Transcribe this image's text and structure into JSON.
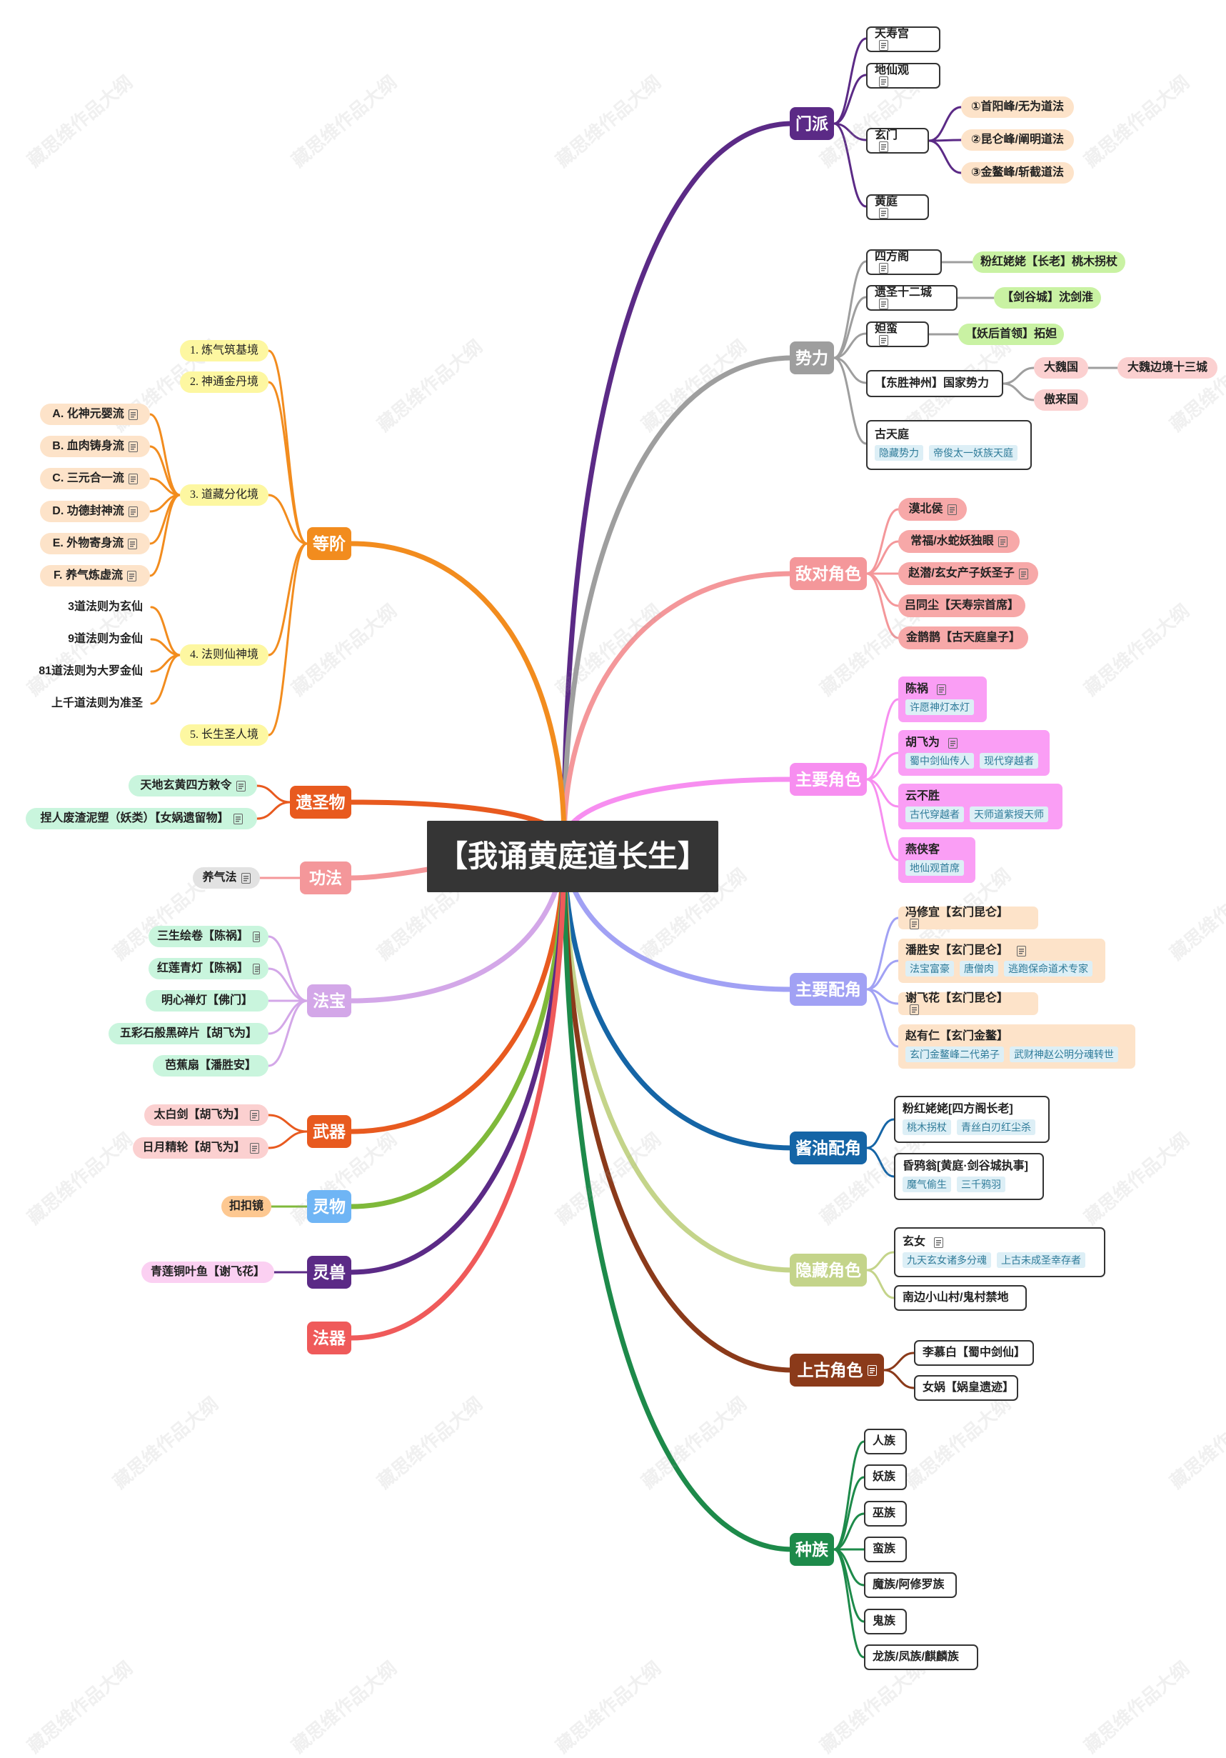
{
  "watermark": "藏思维作品大纲",
  "center": "【我诵黄庭道长生】",
  "branches": {
    "menpai": {
      "label": "门派",
      "color": "#5b2a86",
      "children": [
        {
          "label": "天寿宫",
          "note": true
        },
        {
          "label": "地仙观",
          "note": true
        },
        {
          "label": "玄门",
          "note": true,
          "children": [
            "①首阳峰/无为道法",
            "②昆仑峰/阐明道法",
            "③金鳌峰/斩截道法"
          ]
        },
        {
          "label": "黄庭",
          "note": true
        }
      ]
    },
    "shili": {
      "label": "势力",
      "color": "#9e9e9e",
      "children": [
        {
          "label": "四方阁",
          "note": true,
          "child": "粉红姥姥【长老】桃木拐杖"
        },
        {
          "label": "遗圣十二城",
          "note": true,
          "child": "【剑谷城】沈剑淮"
        },
        {
          "label": "妲蛮",
          "note": true,
          "child": "【妖后首领】拓妲"
        },
        {
          "label": "【东胜神州】国家势力",
          "children": [
            {
              "label": "大魏国",
              "child": "大魏边境十三城"
            },
            {
              "label": "傲来国"
            }
          ]
        },
        {
          "label": "古天庭",
          "tags": [
            "隐藏势力",
            "帝俊太一妖族天庭"
          ]
        }
      ]
    },
    "didui": {
      "label": "敌对角色",
      "color": "#f4979a",
      "children": [
        {
          "label": "漠北侯",
          "note": true
        },
        {
          "label": "常福/水蛇妖独眼",
          "note": true
        },
        {
          "label": "赵潜/玄女产子妖圣子",
          "note": true
        },
        {
          "label": "吕同尘【天寿宗首席】"
        },
        {
          "label": "金鹊鹊【古天庭皇子】"
        }
      ]
    },
    "zhuyao": {
      "label": "主要角色",
      "color": "#f78ef0",
      "children": [
        {
          "label": "陈祸",
          "note": true,
          "tags": [
            "许愿神灯本灯"
          ]
        },
        {
          "label": "胡飞为",
          "note": true,
          "tags": [
            "蜀中剑仙传人",
            "现代穿越者"
          ]
        },
        {
          "label": "云不胜",
          "tags": [
            "古代穿越者",
            "天师道紫授天师"
          ]
        },
        {
          "label": "燕侠客",
          "tags": [
            "地仙观首席"
          ]
        }
      ]
    },
    "peijue": {
      "label": "主要配角",
      "color": "#a1a1f4",
      "children": [
        {
          "label": "冯修宜【玄门昆仑】",
          "note": true
        },
        {
          "label": "潘胜安【玄门昆仑】",
          "note": true,
          "tags": [
            "法宝富豪",
            "唐僧肉",
            "逃跑保命道术专家"
          ]
        },
        {
          "label": "谢飞花【玄门昆仑】",
          "note": true
        },
        {
          "label": "赵有仁【玄门金鳌】",
          "tags": [
            "玄门金鳌峰二代弟子",
            "武财神赵公明分魂转世"
          ]
        }
      ]
    },
    "jiangyou": {
      "label": "酱油配角",
      "color": "#1565a6",
      "children": [
        {
          "label": "粉红姥姥[四方阁长老]",
          "tags": [
            "桃木拐杖",
            "青丝白刃红尘杀"
          ]
        },
        {
          "label": "昏鸦翁[黄庭·剑谷城执事]",
          "tags": [
            "魔气偷生",
            "三千鸦羽"
          ]
        }
      ]
    },
    "yincang": {
      "label": "隐藏角色",
      "color": "#c4d48a",
      "children": [
        {
          "label": "玄女",
          "note": true,
          "tags": [
            "九天玄女诸多分魂",
            "上古未成圣幸存者"
          ]
        },
        {
          "label": "南边小山村/鬼村禁地"
        }
      ]
    },
    "shanggu": {
      "label": "上古角色",
      "color": "#8b3a1a",
      "note": true,
      "children": [
        {
          "label": "李慕白【蜀中剑仙】"
        },
        {
          "label": "女娲【娲皇遗迹】"
        }
      ]
    },
    "zhongzu": {
      "label": "种族",
      "color": "#1d8a4a",
      "children": [
        "人族",
        "妖族",
        "巫族",
        "蛮族",
        "魔族/阿修罗族",
        "鬼族",
        "龙族/凤族/麒麟族"
      ]
    },
    "dengjie": {
      "label": "等阶",
      "color": "#f28c1e",
      "children": [
        {
          "label": "1. 炼气筑基境"
        },
        {
          "label": "2. 神通金丹境"
        },
        {
          "label": "3. 道藏分化境",
          "children": [
            "A. 化神元婴流",
            "B. 血肉铸身流",
            "C. 三元合一流",
            "D. 功德封神流",
            "E. 外物寄身流",
            "F. 养气炼虚流"
          ]
        },
        {
          "label": "4. 法则仙神境",
          "children": [
            "3道法则为玄仙",
            "9道法则为金仙",
            "81道法则为大罗金仙",
            "上千道法则为准圣"
          ]
        },
        {
          "label": "5. 长生圣人境"
        }
      ]
    },
    "yishengwu": {
      "label": "遗圣物",
      "color": "#e85a1f",
      "children": [
        "天地玄黄四方敕令",
        "捏人废渣泥塑（妖类）【女娲遗留物】"
      ]
    },
    "gongfa": {
      "label": "功法",
      "color": "#f4979a",
      "children": [
        "养气法"
      ]
    },
    "fabao": {
      "label": "法宝",
      "color": "#d3a7e8",
      "children": [
        "三生绘卷【陈祸】",
        "红莲青灯【陈祸】",
        "明心禅灯【佛门】",
        "五彩石般黑碎片【胡飞为】",
        "芭蕉扇【潘胜安】"
      ]
    },
    "wuqi": {
      "label": "武器",
      "color": "#e85a1f",
      "children": [
        "太白剑【胡飞为】",
        "日月精轮【胡飞为】"
      ]
    },
    "lingwu": {
      "label": "灵物",
      "color": "#7fb93a",
      "children": [
        "扣扣镜"
      ]
    },
    "lingshou": {
      "label": "灵兽",
      "color": "#5b2a86",
      "children": [
        "青莲铜叶鱼【谢飞花】"
      ]
    },
    "faqi": {
      "label": "法器",
      "color": "#ef5a5a",
      "children": []
    }
  }
}
